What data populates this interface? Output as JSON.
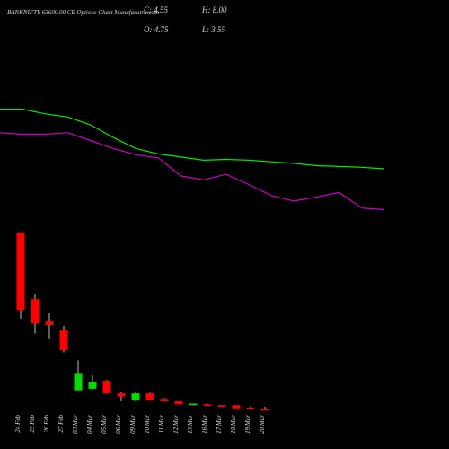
{
  "chart_data": {
    "type": "candlestick",
    "title": "BANKNIFTY 63600.00 CE Options Chart Munafasutra.com",
    "ohlc_labels": [
      "C: 4.55",
      "H: 8.00",
      "O: 4.75",
      "L: 3.55"
    ],
    "categories": [
      "24 Feb",
      "25 Feb",
      "26 Feb",
      "27 Feb",
      "03 Mar",
      "04 Mar",
      "05 Mar",
      "06 Mar",
      "09 Mar",
      "10 Mar",
      "11 Mar",
      "12 Mar",
      "13 Mar",
      "16 Mar",
      "17 Mar",
      "18 Mar",
      "19 Mar",
      "20 Mar"
    ],
    "open": [
      230,
      145,
      117,
      105,
      29,
      31,
      41,
      25,
      17,
      25,
      18,
      15,
      10,
      11,
      10,
      10,
      7,
      4.75
    ],
    "high": [
      230,
      152,
      127,
      111,
      67,
      48,
      42,
      27,
      27,
      26,
      19,
      15,
      12,
      12,
      10,
      10,
      8,
      8.0
    ],
    "low": [
      120,
      101,
      95,
      77,
      29,
      30,
      25,
      16,
      16,
      17,
      15,
      11,
      10,
      9,
      8,
      6,
      5,
      3.55
    ],
    "close": [
      131,
      114,
      112,
      80,
      51,
      40,
      25,
      21,
      25,
      17,
      16,
      11,
      12,
      9,
      8,
      6,
      6,
      4.55
    ],
    "up_color": "#00dd00",
    "down_color": "#ff0000",
    "lines": [
      {
        "color": "#00ee00",
        "values": [
          387,
          387,
          381,
          377,
          367,
          351,
          337,
          330,
          326,
          322,
          323,
          322,
          320,
          318,
          315,
          314,
          313,
          311
        ]
      },
      {
        "color": "#cc00cc",
        "values": [
          357,
          355,
          355,
          357,
          347,
          337,
          329,
          325,
          302,
          297,
          304,
          291,
          277,
          270,
          275,
          281,
          261,
          259
        ]
      }
    ],
    "ylim": [
      0,
      526
    ]
  }
}
